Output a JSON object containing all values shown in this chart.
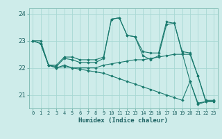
{
  "title": "",
  "xlabel": "Humidex (Indice chaleur)",
  "ylabel": "",
  "background_color": "#ceecea",
  "grid_color": "#a8d8d4",
  "line_color": "#1a7a6e",
  "x_values": [
    0,
    1,
    2,
    3,
    4,
    5,
    6,
    7,
    8,
    9,
    10,
    11,
    12,
    13,
    14,
    15,
    16,
    17,
    18,
    19,
    20,
    21,
    22,
    23
  ],
  "lines": [
    [
      23.0,
      22.9,
      22.1,
      22.1,
      22.4,
      22.4,
      22.3,
      22.3,
      22.3,
      22.4,
      23.8,
      23.85,
      23.2,
      23.15,
      22.6,
      22.55,
      22.55,
      23.7,
      23.65,
      22.6,
      22.55,
      21.7,
      20.75,
      20.75
    ],
    [
      23.0,
      23.0,
      22.1,
      22.05,
      22.35,
      22.3,
      22.2,
      22.2,
      22.2,
      22.35,
      23.8,
      23.85,
      23.2,
      23.15,
      22.45,
      22.3,
      22.45,
      23.6,
      23.65,
      22.55,
      21.5,
      20.65,
      20.75,
      20.75
    ],
    [
      23.0,
      22.9,
      22.1,
      22.0,
      22.1,
      22.0,
      22.0,
      22.0,
      22.0,
      22.1,
      22.15,
      22.2,
      22.25,
      22.3,
      22.3,
      22.35,
      22.4,
      22.45,
      22.5,
      22.5,
      22.5,
      21.7,
      20.8,
      20.8
    ],
    [
      23.0,
      22.9,
      22.1,
      22.0,
      22.05,
      22.0,
      21.95,
      21.9,
      21.85,
      21.8,
      21.7,
      21.6,
      21.5,
      21.4,
      21.3,
      21.2,
      21.1,
      21.0,
      20.9,
      20.8,
      21.5,
      20.7,
      20.75,
      20.75
    ]
  ],
  "ylim": [
    20.5,
    24.2
  ],
  "yticks": [
    21,
    22,
    23,
    24
  ],
  "xticks": [
    0,
    1,
    2,
    3,
    4,
    5,
    6,
    7,
    8,
    9,
    10,
    11,
    12,
    13,
    14,
    15,
    16,
    17,
    18,
    19,
    20,
    21,
    22,
    23
  ],
  "marker": "D",
  "markersize": 1.8,
  "linewidth": 0.8
}
